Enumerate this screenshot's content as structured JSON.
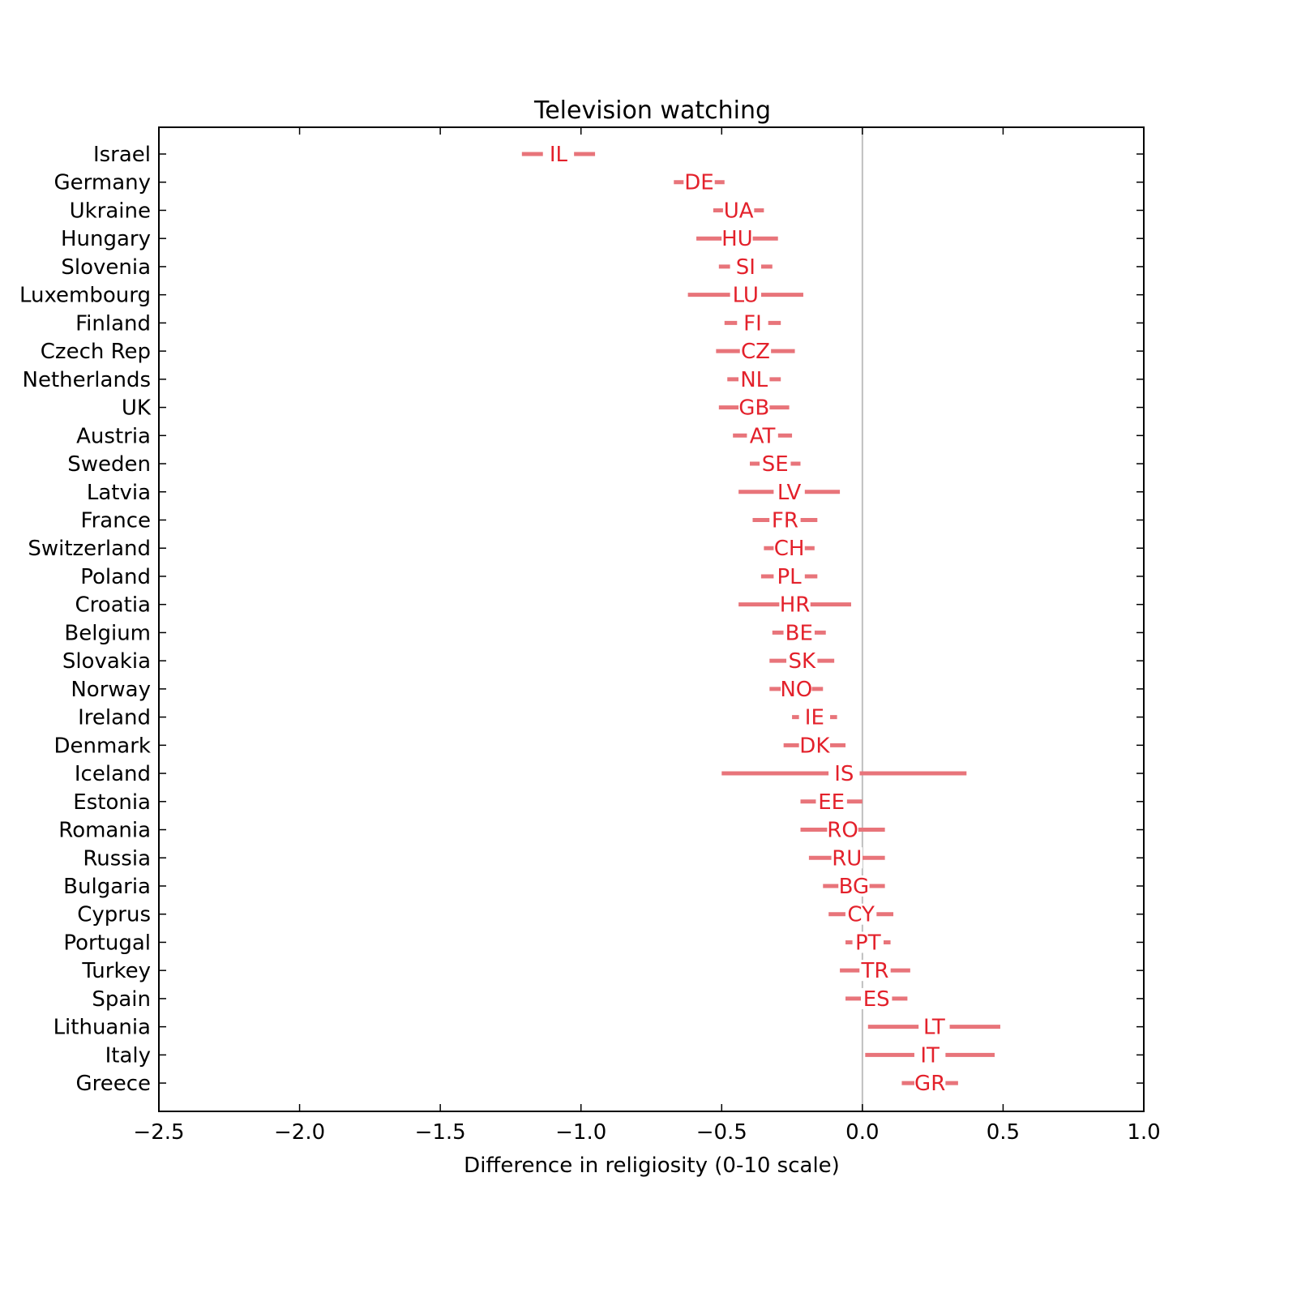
{
  "chart_data": {
    "type": "interval",
    "title": "Television watching",
    "xlabel": "Difference in religiosity (0-10 scale)",
    "ylabel": "",
    "xlim": [
      -2.5,
      1.0
    ],
    "xticks": [
      -2.5,
      -2.0,
      -1.5,
      -1.0,
      -0.5,
      0.0,
      0.5,
      1.0
    ],
    "xtick_labels": [
      "−2.5",
      "−2.0",
      "−1.5",
      "−1.0",
      "−0.5",
      "0.0",
      "0.5",
      "1.0"
    ],
    "reference_line_x": 0.0,
    "grid": false,
    "colors": {
      "interval": "#e8747a",
      "code_text": "#e3212b",
      "reference_line": "#bfbfbf"
    },
    "rows": [
      {
        "country": "Israel",
        "code": "IL",
        "low": -1.21,
        "high": -0.95
      },
      {
        "country": "Germany",
        "code": "DE",
        "low": -0.67,
        "high": -0.49
      },
      {
        "country": "Ukraine",
        "code": "UA",
        "low": -0.53,
        "high": -0.35
      },
      {
        "country": "Hungary",
        "code": "HU",
        "low": -0.59,
        "high": -0.3
      },
      {
        "country": "Slovenia",
        "code": "SI",
        "low": -0.51,
        "high": -0.32
      },
      {
        "country": "Luxembourg",
        "code": "LU",
        "low": -0.62,
        "high": -0.21
      },
      {
        "country": "Finland",
        "code": "FI",
        "low": -0.49,
        "high": -0.29
      },
      {
        "country": "Czech Rep",
        "code": "CZ",
        "low": -0.52,
        "high": -0.24
      },
      {
        "country": "Netherlands",
        "code": "NL",
        "low": -0.48,
        "high": -0.29
      },
      {
        "country": "UK",
        "code": "GB",
        "low": -0.51,
        "high": -0.26
      },
      {
        "country": "Austria",
        "code": "AT",
        "low": -0.46,
        "high": -0.25
      },
      {
        "country": "Sweden",
        "code": "SE",
        "low": -0.4,
        "high": -0.22
      },
      {
        "country": "Latvia",
        "code": "LV",
        "low": -0.44,
        "high": -0.08
      },
      {
        "country": "France",
        "code": "FR",
        "low": -0.39,
        "high": -0.16
      },
      {
        "country": "Switzerland",
        "code": "CH",
        "low": -0.35,
        "high": -0.17
      },
      {
        "country": "Poland",
        "code": "PL",
        "low": -0.36,
        "high": -0.16
      },
      {
        "country": "Croatia",
        "code": "HR",
        "low": -0.44,
        "high": -0.04
      },
      {
        "country": "Belgium",
        "code": "BE",
        "low": -0.32,
        "high": -0.13
      },
      {
        "country": "Slovakia",
        "code": "SK",
        "low": -0.33,
        "high": -0.1
      },
      {
        "country": "Norway",
        "code": "NO",
        "low": -0.33,
        "high": -0.14
      },
      {
        "country": "Ireland",
        "code": "IE",
        "low": -0.25,
        "high": -0.09
      },
      {
        "country": "Denmark",
        "code": "DK",
        "low": -0.28,
        "high": -0.06
      },
      {
        "country": "Iceland",
        "code": "IS",
        "low": -0.5,
        "high": 0.37
      },
      {
        "country": "Estonia",
        "code": "EE",
        "low": -0.22,
        "high": 0.0
      },
      {
        "country": "Romania",
        "code": "RO",
        "low": -0.22,
        "high": 0.08
      },
      {
        "country": "Russia",
        "code": "RU",
        "low": -0.19,
        "high": 0.08
      },
      {
        "country": "Bulgaria",
        "code": "BG",
        "low": -0.14,
        "high": 0.08
      },
      {
        "country": "Cyprus",
        "code": "CY",
        "low": -0.12,
        "high": 0.11
      },
      {
        "country": "Portugal",
        "code": "PT",
        "low": -0.06,
        "high": 0.1
      },
      {
        "country": "Turkey",
        "code": "TR",
        "low": -0.08,
        "high": 0.17
      },
      {
        "country": "Spain",
        "code": "ES",
        "low": -0.06,
        "high": 0.16
      },
      {
        "country": "Lithuania",
        "code": "LT",
        "low": 0.02,
        "high": 0.49
      },
      {
        "country": "Italy",
        "code": "IT",
        "low": 0.01,
        "high": 0.47
      },
      {
        "country": "Greece",
        "code": "GR",
        "low": 0.14,
        "high": 0.34
      }
    ]
  }
}
